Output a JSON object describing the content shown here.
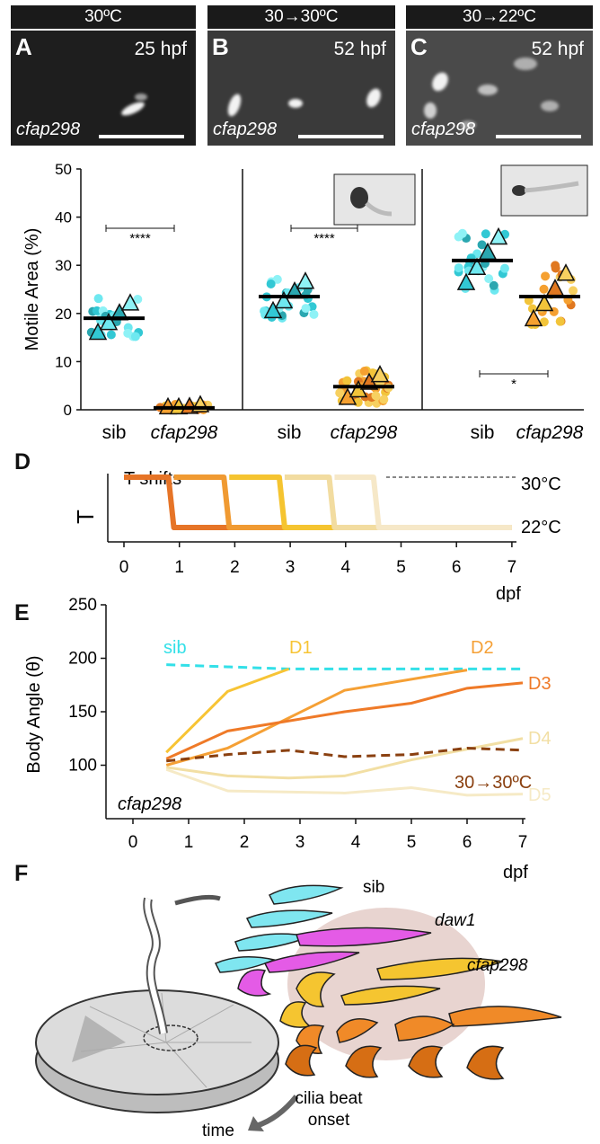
{
  "panel_a": {
    "header": "30ºC",
    "letter_a": "A",
    "hpf_a": "25 hpf",
    "gene_a": "cfap298",
    "letter_b": "B",
    "hpf_b": "52 hpf",
    "gene_b": "cfap298",
    "letter_c": "C",
    "hpf_c": "52 hpf",
    "gene_c": "cfap298"
  },
  "headers": {
    "b": "30→30ºC",
    "c": "30→22ºC"
  },
  "chart_data": [
    {
      "type": "scatter",
      "ylabel": "Motile Area (%)",
      "ylim": [
        0,
        50
      ],
      "yticks": [
        "0",
        "10",
        "20",
        "30",
        "40",
        "50"
      ],
      "panels": [
        {
          "condition": "30ºC",
          "categories": [
            "sib",
            "cfap298"
          ],
          "means": [
            19,
            0.4
          ],
          "significance": "****"
        },
        {
          "condition": "30→30ºC",
          "categories": [
            "sib",
            "cfap298"
          ],
          "means": [
            23.5,
            4.8
          ],
          "significance": "****"
        },
        {
          "condition": "30→22ºC",
          "categories": [
            "sib",
            "cfap298"
          ],
          "means": [
            31,
            23.5
          ],
          "significance": "*"
        }
      ]
    },
    {
      "type": "line",
      "title": "T shifts",
      "ylabel": "T",
      "xlabel": "dpf",
      "xticks": [
        "0",
        "1",
        "2",
        "3",
        "4",
        "5",
        "6",
        "7"
      ],
      "levels": {
        "high": "30°C",
        "low": "22°C"
      },
      "shift_days": [
        0.9,
        1.9,
        2.9,
        3.8,
        4.6
      ]
    },
    {
      "type": "line",
      "ylabel": "Body Angle (θ)",
      "xlabel": "dpf",
      "ylim": [
        50,
        250
      ],
      "xticks": [
        "0",
        "1",
        "2",
        "3",
        "4",
        "5",
        "6",
        "7"
      ],
      "yticks": [
        "100",
        "150",
        "200",
        "250"
      ],
      "annotation": "cfap298",
      "series": [
        {
          "name": "sib",
          "color": "#33e0e8",
          "dashed": true,
          "points": [
            [
              0.6,
              194
            ],
            [
              2.8,
              190
            ],
            [
              7,
              190
            ]
          ]
        },
        {
          "name": "D1",
          "color": "#f7c435",
          "points": [
            [
              0.6,
              112
            ],
            [
              1.7,
              169
            ],
            [
              2.8,
              190
            ]
          ]
        },
        {
          "name": "D2",
          "color": "#f5a035",
          "points": [
            [
              0.6,
              100
            ],
            [
              1.7,
              116
            ],
            [
              3.8,
              170
            ],
            [
              6,
              189
            ]
          ]
        },
        {
          "name": "D3",
          "color": "#ef7a28",
          "points": [
            [
              0.6,
              106
            ],
            [
              1.7,
              132
            ],
            [
              3.8,
              150
            ],
            [
              5,
              158
            ],
            [
              6,
              172
            ],
            [
              7,
              177
            ]
          ]
        },
        {
          "name": "D4",
          "color": "#f2dfa4",
          "points": [
            [
              0.6,
              98
            ],
            [
              1.7,
              90
            ],
            [
              2.8,
              88
            ],
            [
              3.8,
              90
            ],
            [
              5,
              105
            ],
            [
              7,
              125
            ]
          ]
        },
        {
          "name": "D5",
          "color": "#f6eac6",
          "points": [
            [
              0.6,
              96
            ],
            [
              1.7,
              76
            ],
            [
              3.8,
              74
            ],
            [
              5,
              79
            ],
            [
              6,
              72
            ],
            [
              7,
              73
            ]
          ]
        },
        {
          "name": "30→30ºC",
          "color": "#8a4010",
          "dashed": true,
          "points": [
            [
              0.6,
              104
            ],
            [
              1.7,
              110
            ],
            [
              2.8,
              114
            ],
            [
              3.8,
              108
            ],
            [
              5,
              110
            ],
            [
              6,
              116
            ],
            [
              7,
              114
            ]
          ]
        }
      ]
    }
  ],
  "panel_f": {
    "label_sib": "sib",
    "label_daw1": "daw1",
    "label_cfap": "cfap298",
    "time": "time",
    "onset_1": "cilia beat",
    "onset_2": "onset"
  }
}
